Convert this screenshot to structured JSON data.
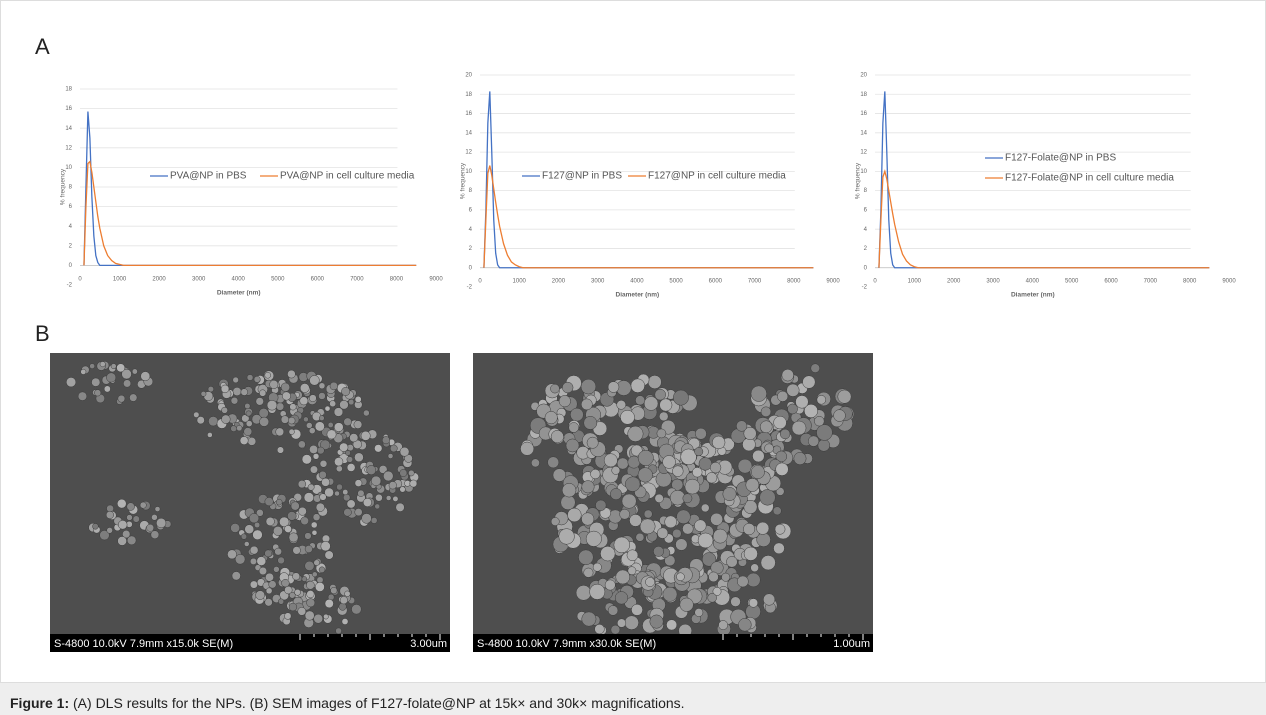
{
  "panels": {
    "a": "A",
    "b": "B"
  },
  "chart_data": [
    {
      "type": "line",
      "legend": "center",
      "x_label": "Diameter (nm)",
      "y_label": "% frequency",
      "x": [
        100,
        150,
        200,
        250,
        300,
        350,
        400,
        450,
        500,
        600,
        700,
        800,
        900,
        1000,
        1100,
        1200,
        2000,
        4000,
        6000,
        8500
      ],
      "xlim": [
        0,
        9000
      ],
      "xticks": [
        0,
        1000,
        2000,
        3000,
        4000,
        5000,
        6000,
        7000,
        8000,
        9000
      ],
      "ylim": [
        -2,
        18
      ],
      "yticks": [
        -2,
        0,
        2,
        4,
        6,
        8,
        10,
        12,
        14,
        16,
        18
      ],
      "grid": true,
      "series": [
        {
          "name": "PVA@NP in PBS",
          "color": "#4472c4",
          "values": [
            0,
            8,
            15.7,
            13,
            7,
            3,
            1,
            0.3,
            0,
            0,
            0,
            0,
            0,
            0,
            0,
            0,
            0,
            0,
            0,
            0
          ]
        },
        {
          "name": "PVA@NP in cell culture media",
          "color": "#ed7d31",
          "values": [
            0,
            6,
            10.4,
            10.6,
            9.5,
            8,
            6.5,
            5,
            3.8,
            2,
            1,
            0.5,
            0.2,
            0.1,
            0,
            0,
            0,
            0,
            0,
            0
          ]
        }
      ]
    },
    {
      "type": "line",
      "legend": "center",
      "x_label": "Diameter (nm)",
      "y_label": "% frequency",
      "x": [
        100,
        150,
        200,
        250,
        300,
        350,
        400,
        450,
        500,
        600,
        700,
        800,
        900,
        1000,
        1100,
        1200,
        2000,
        4000,
        6000,
        8500
      ],
      "xlim": [
        0,
        9000
      ],
      "xticks": [
        0,
        1000,
        2000,
        3000,
        4000,
        5000,
        6000,
        7000,
        8000,
        9000
      ],
      "ylim": [
        -2,
        20
      ],
      "yticks": [
        -2,
        0,
        2,
        4,
        6,
        8,
        10,
        12,
        14,
        16,
        18,
        20
      ],
      "grid": true,
      "series": [
        {
          "name": "F127@NP in PBS",
          "color": "#4472c4",
          "values": [
            0,
            6,
            15,
            18.3,
            12,
            5,
            1.5,
            0.3,
            0,
            0,
            0,
            0,
            0,
            0,
            0,
            0,
            0,
            0,
            0,
            0
          ]
        },
        {
          "name": "F127@NP in cell culture media",
          "color": "#ed7d31",
          "values": [
            0,
            5,
            9.8,
            10.6,
            9.6,
            8.2,
            6.8,
            5.5,
            4.3,
            2.5,
            1.3,
            0.6,
            0.3,
            0.1,
            0,
            0,
            0,
            0,
            0,
            0
          ]
        }
      ]
    },
    {
      "type": "line",
      "legend": "center",
      "x_label": "Diameter (nm)",
      "y_label": "% frequency",
      "x": [
        100,
        150,
        200,
        250,
        300,
        350,
        400,
        450,
        500,
        600,
        700,
        800,
        900,
        1000,
        1100,
        1200,
        2000,
        4000,
        6000,
        8500
      ],
      "xlim": [
        0,
        9000
      ],
      "xticks": [
        0,
        1000,
        2000,
        3000,
        4000,
        5000,
        6000,
        7000,
        8000,
        9000
      ],
      "ylim": [
        -2,
        20
      ],
      "yticks": [
        -2,
        0,
        2,
        4,
        6,
        8,
        10,
        12,
        14,
        16,
        18,
        20
      ],
      "grid": true,
      "series": [
        {
          "name": "F127-Folate@NP in PBS",
          "color": "#4472c4",
          "values": [
            0,
            6,
            15,
            18.3,
            12,
            5,
            1.5,
            0.3,
            0,
            0,
            0,
            0,
            0,
            0,
            0,
            0,
            0,
            0,
            0,
            0
          ]
        },
        {
          "name": "F127-Folate@NP in cell culture media",
          "color": "#ed7d31",
          "values": [
            0,
            5,
            9.4,
            10,
            9.2,
            8,
            6.8,
            5.6,
            4.5,
            2.7,
            1.4,
            0.7,
            0.3,
            0.1,
            0,
            0,
            0,
            0,
            0,
            0
          ]
        }
      ]
    }
  ],
  "sem_images": [
    {
      "info": "S-4800 10.0kV 7.9mm x15.0k SE(M)",
      "scale": "3.00um"
    },
    {
      "info": "S-4800 10.0kV 7.9mm x30.0k SE(M)",
      "scale": "1.00um"
    }
  ],
  "caption": {
    "label": "Figure 1:",
    "text": "(A) DLS results for the NPs. (B) SEM images of F127-folate@NP at 15k× and 30k× magnifications."
  }
}
